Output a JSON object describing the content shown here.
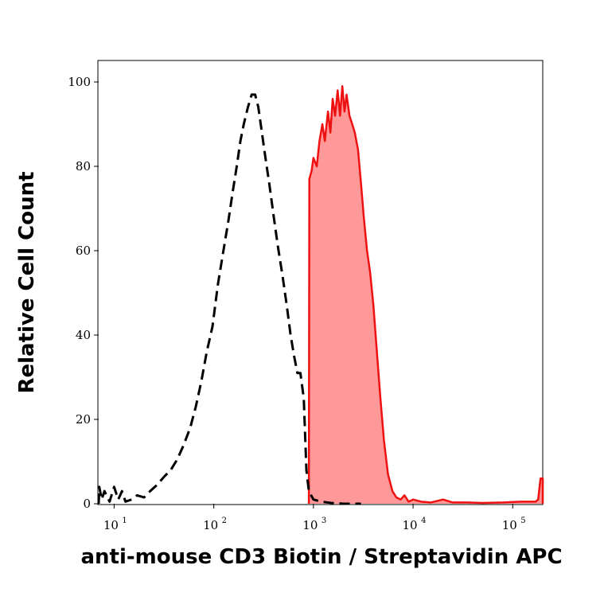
{
  "chart_data": {
    "type": "area",
    "xlabel": "anti-mouse CD3 Biotin / Streptavidin APC",
    "ylabel": "Relative Cell Count",
    "x_scale": "log",
    "xlim": [
      7,
      200000
    ],
    "ylim": [
      0,
      100
    ],
    "y_ticks": [
      "0",
      "20",
      "40",
      "60",
      "80",
      "100"
    ],
    "x_ticks": [
      {
        "base": "10",
        "exp": "1",
        "value": 10
      },
      {
        "base": "10",
        "exp": "2",
        "value": 100
      },
      {
        "base": "10",
        "exp": "3",
        "value": 1000
      },
      {
        "base": "10",
        "exp": "4",
        "value": 10000
      },
      {
        "base": "10",
        "exp": "5",
        "value": 100000
      }
    ],
    "series": [
      {
        "style": "dashed-line",
        "color": "#000000",
        "points": [
          [
            7,
            0
          ],
          [
            7.1,
            4
          ],
          [
            7.5,
            1
          ],
          [
            8,
            3
          ],
          [
            9,
            0.5
          ],
          [
            10,
            4
          ],
          [
            11,
            1
          ],
          [
            12,
            3
          ],
          [
            13,
            0.5
          ],
          [
            15,
            1
          ],
          [
            17,
            2
          ],
          [
            20,
            1.5
          ],
          [
            23,
            3
          ],
          [
            27,
            4.5
          ],
          [
            32,
            6.5
          ],
          [
            37,
            8
          ],
          [
            43,
            10.5
          ],
          [
            50,
            14
          ],
          [
            58,
            18
          ],
          [
            66,
            23
          ],
          [
            75,
            29
          ],
          [
            85,
            36
          ],
          [
            97,
            42
          ],
          [
            110,
            52
          ],
          [
            125,
            60
          ],
          [
            140,
            67
          ],
          [
            155,
            74
          ],
          [
            170,
            80
          ],
          [
            185,
            86
          ],
          [
            200,
            90
          ],
          [
            220,
            94
          ],
          [
            240,
            97
          ],
          [
            260,
            97
          ],
          [
            280,
            94
          ],
          [
            300,
            89
          ],
          [
            330,
            82
          ],
          [
            360,
            76
          ],
          [
            400,
            68
          ],
          [
            440,
            61
          ],
          [
            490,
            54
          ],
          [
            540,
            47
          ],
          [
            590,
            40
          ],
          [
            640,
            35
          ],
          [
            690,
            31
          ],
          [
            740,
            31
          ],
          [
            800,
            25
          ],
          [
            850,
            8
          ],
          [
            900,
            3
          ],
          [
            1000,
            1
          ],
          [
            1200,
            0.5
          ],
          [
            1500,
            0.2
          ],
          [
            2000,
            0
          ],
          [
            3000,
            0
          ]
        ]
      },
      {
        "style": "filled",
        "color": "#ee1111",
        "fill": "#ff9999",
        "points": [
          [
            900,
            0
          ],
          [
            910,
            77
          ],
          [
            960,
            79
          ],
          [
            1000,
            82
          ],
          [
            1080,
            80
          ],
          [
            1150,
            86
          ],
          [
            1230,
            90
          ],
          [
            1300,
            86
          ],
          [
            1400,
            93
          ],
          [
            1480,
            88
          ],
          [
            1560,
            96
          ],
          [
            1650,
            92
          ],
          [
            1750,
            98
          ],
          [
            1850,
            92
          ],
          [
            1950,
            99
          ],
          [
            2050,
            93
          ],
          [
            2150,
            97
          ],
          [
            2300,
            92
          ],
          [
            2450,
            90
          ],
          [
            2600,
            88
          ],
          [
            2800,
            84
          ],
          [
            3000,
            76
          ],
          [
            3200,
            68
          ],
          [
            3450,
            60
          ],
          [
            3700,
            55
          ],
          [
            4000,
            47
          ],
          [
            4300,
            37
          ],
          [
            4700,
            25
          ],
          [
            5100,
            15
          ],
          [
            5600,
            7
          ],
          [
            6200,
            3
          ],
          [
            6800,
            1.5
          ],
          [
            7500,
            1
          ],
          [
            8200,
            2
          ],
          [
            9000,
            0.5
          ],
          [
            10000,
            1
          ],
          [
            12000,
            0.5
          ],
          [
            15000,
            0.3
          ],
          [
            20000,
            1
          ],
          [
            25000,
            0.3
          ],
          [
            35000,
            0.3
          ],
          [
            50000,
            0.2
          ],
          [
            80000,
            0.3
          ],
          [
            120000,
            0.5
          ],
          [
            170000,
            0.5
          ],
          [
            180000,
            1
          ],
          [
            190000,
            6
          ],
          [
            200000,
            6
          ],
          [
            200000,
            0
          ]
        ]
      }
    ]
  }
}
